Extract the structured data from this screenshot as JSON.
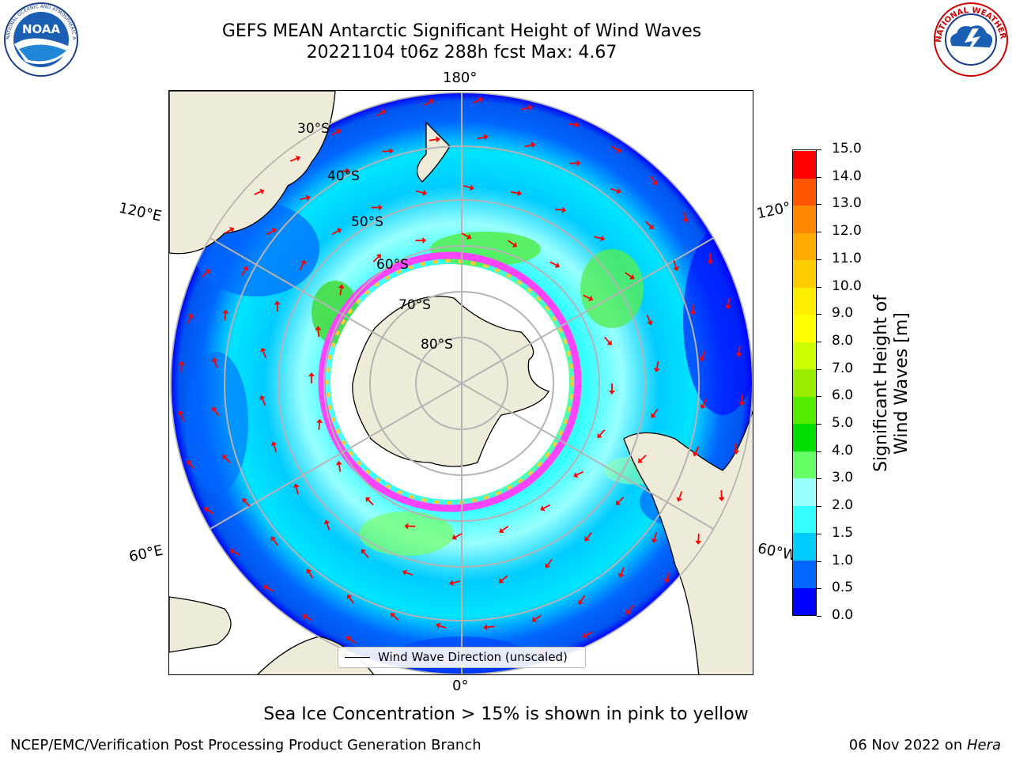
{
  "header": {
    "title_line1": "GEFS MEAN Antarctic Significant Height of Wind Waves",
    "title_line2": "20221104 t06z 288h fcst   Max: 4.67"
  },
  "logos": {
    "left": {
      "name": "noaa-logo",
      "text": "NOAA",
      "ring_text": "NATIONAL OCEANIC AND ATMOSPHERIC ADMINISTRATION · U.S. DEPARTMENT OF COMMERCE"
    },
    "right": {
      "name": "nws-logo",
      "ring_text": "NATIONAL WEATHER SERVICE"
    }
  },
  "map": {
    "meridian_labels": {
      "top": "180°",
      "bottom": "0°",
      "upper_left": "120°E",
      "upper_right": "120°",
      "lower_left": "60°E",
      "lower_right": "60°W"
    },
    "latitude_labels": [
      "30°S",
      "40°S",
      "50°S",
      "60°S",
      "70°S",
      "80°S"
    ],
    "legend": "Wind Wave Direction (unscaled)",
    "colors": {
      "land": "#eeecd9",
      "sea_ice_low": "#ff66ff",
      "sea_ice_high": "#ffcc33",
      "arrows": "#ff0000",
      "grid": "#b4b4b4"
    }
  },
  "colorbar": {
    "label": "Significant Height of Wind Waves [m]",
    "ticks": [
      "0.0",
      "0.5",
      "1.0",
      "1.5",
      "2.0",
      "3.0",
      "4.0",
      "5.0",
      "6.0",
      "7.0",
      "8.0",
      "9.0",
      "10.0",
      "11.0",
      "12.0",
      "13.0",
      "14.0",
      "15.0"
    ],
    "colors": [
      "#0000ff",
      "#0066ff",
      "#00ccff",
      "#33ffff",
      "#99ffff",
      "#66ff66",
      "#00dd00",
      "#55ee00",
      "#99ee00",
      "#ccff00",
      "#ffff00",
      "#ffee00",
      "#ffcc00",
      "#ffaa00",
      "#ff8800",
      "#ff5500",
      "#ff0000"
    ]
  },
  "footer": {
    "note": "Sea Ice Concentration > 15% is shown in pink to yellow",
    "credit": "NCEP/EMC/Verification Post Processing Product Generation Branch",
    "date": "06 Nov 2022 on ",
    "machine": "Hera"
  }
}
